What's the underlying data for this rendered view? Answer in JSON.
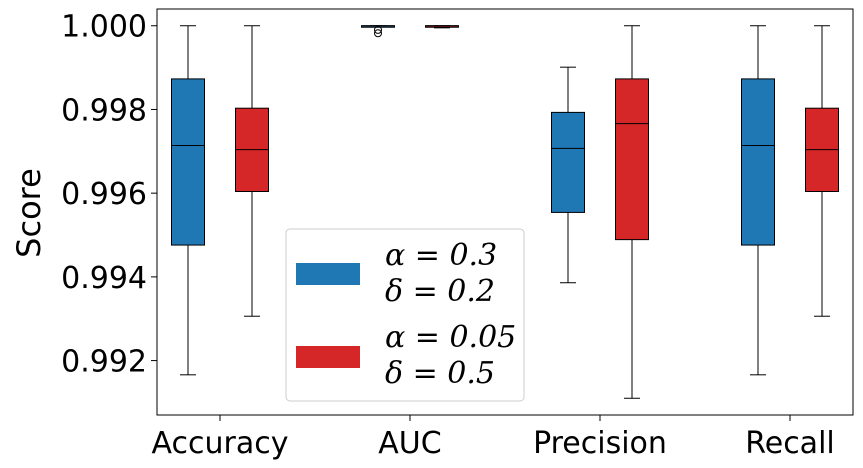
{
  "chart_data": {
    "type": "box",
    "title": "",
    "xlabel": "",
    "ylabel": "Score",
    "ylim": [
      0.9907,
      1.0004
    ],
    "yticks": [
      "0.992",
      "0.994",
      "0.996",
      "0.998",
      "1.000"
    ],
    "ytick_values": [
      0.992,
      0.994,
      0.996,
      0.998,
      1.0
    ],
    "categories": [
      "Accuracy",
      "AUC",
      "Precision",
      "Recall"
    ],
    "grid": false,
    "legend_position": "lower-center",
    "series": [
      {
        "name": "α = 0.3, δ = 0.2",
        "legend_lines": [
          "α = 0.3",
          "δ = 0.2"
        ],
        "color": "#1f77b4",
        "boxes": [
          {
            "whisker_low": 0.99166,
            "q1": 0.99476,
            "median": 0.99714,
            "q3": 0.99873,
            "whisker_high": 1.0,
            "outliers": []
          },
          {
            "whisker_low": 0.99999,
            "q1": 0.99999,
            "median": 1.0,
            "q3": 1.0,
            "whisker_high": 1.0,
            "outliers": [
              0.99982,
              0.9999
            ]
          },
          {
            "whisker_low": 0.99386,
            "q1": 0.99554,
            "median": 0.99707,
            "q3": 0.99793,
            "whisker_high": 0.99901,
            "outliers": []
          },
          {
            "whisker_low": 0.99166,
            "q1": 0.99476,
            "median": 0.99714,
            "q3": 0.99873,
            "whisker_high": 1.0,
            "outliers": []
          }
        ]
      },
      {
        "name": "α = 0.05, δ = 0.5",
        "legend_lines": [
          "α = 0.05",
          "δ = 0.5"
        ],
        "color": "#d62728",
        "boxes": [
          {
            "whisker_low": 0.99306,
            "q1": 0.99604,
            "median": 0.99704,
            "q3": 0.99803,
            "whisker_high": 1.0,
            "outliers": []
          },
          {
            "whisker_low": 0.99995,
            "q1": 0.99998,
            "median": 1.0,
            "q3": 1.0,
            "whisker_high": 1.0,
            "outliers": []
          },
          {
            "whisker_low": 0.9911,
            "q1": 0.99489,
            "median": 0.99766,
            "q3": 0.99873,
            "whisker_high": 1.0,
            "outliers": []
          },
          {
            "whisker_low": 0.99306,
            "q1": 0.99604,
            "median": 0.99704,
            "q3": 0.99803,
            "whisker_high": 1.0,
            "outliers": []
          }
        ]
      }
    ]
  }
}
